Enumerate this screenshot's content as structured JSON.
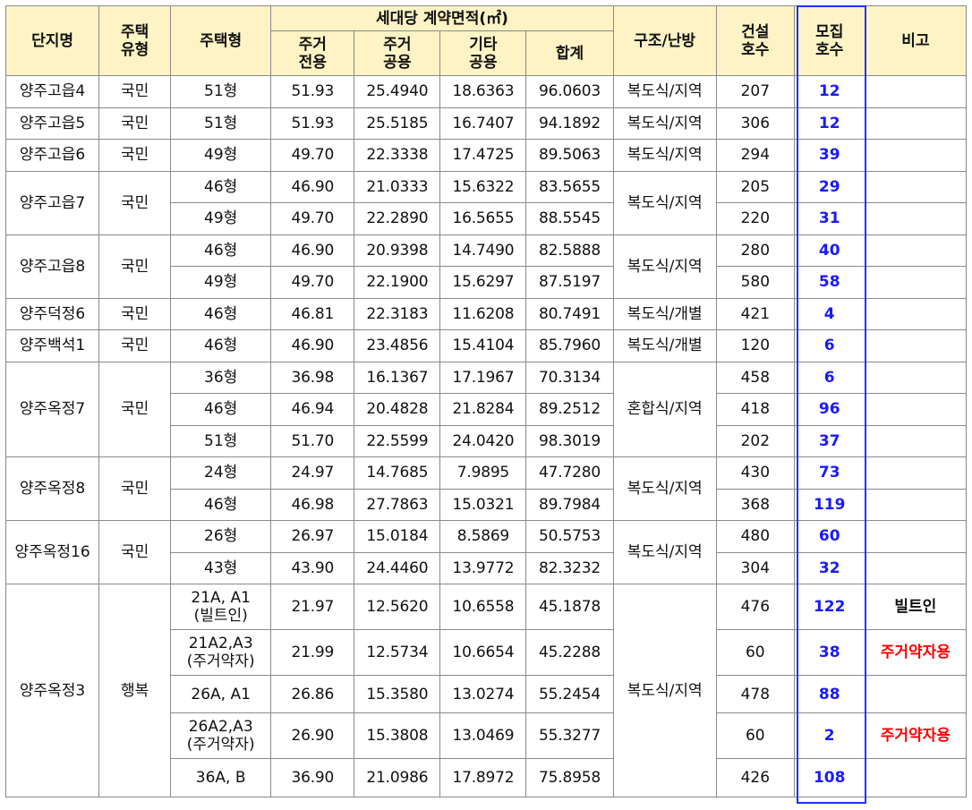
{
  "headers": {
    "complex": "단지명",
    "type1": "주택",
    "type2": "유형",
    "housing_type": "주택형",
    "area_group": "세대당 계약면적(㎡)",
    "res_excl_1": "주거",
    "res_excl_2": "전용",
    "res_common_1": "주거",
    "res_common_2": "공용",
    "other_common_1": "기타",
    "other_common_2": "공용",
    "total": "합계",
    "structure": "구조/난방",
    "built_1": "건설",
    "built_2": "호수",
    "recruit_1": "모집",
    "recruit_2": "호수",
    "note": "비고"
  },
  "rows": [
    {
      "complex": "양주고읍4",
      "kind": "국민",
      "type": "51형",
      "excl": "51.93",
      "common": "25.4940",
      "other": "18.6363",
      "total": "96.0603",
      "structure": "복도식/지역",
      "built": "207",
      "recruit": "12",
      "note": ""
    },
    {
      "complex": "양주고읍5",
      "kind": "국민",
      "type": "51형",
      "excl": "51.93",
      "common": "25.5185",
      "other": "16.7407",
      "total": "94.1892",
      "structure": "복도식/지역",
      "built": "306",
      "recruit": "12",
      "note": ""
    },
    {
      "complex": "양주고읍6",
      "kind": "국민",
      "type": "49형",
      "excl": "49.70",
      "common": "22.3338",
      "other": "17.4725",
      "total": "89.5063",
      "structure": "복도식/지역",
      "built": "294",
      "recruit": "39",
      "note": ""
    },
    {
      "complex": "양주고읍7",
      "kind": "국민",
      "type": "46형",
      "excl": "46.90",
      "common": "21.0333",
      "other": "15.6322",
      "total": "83.5655",
      "structure": "복도식/지역",
      "built": "205",
      "recruit": "29",
      "note": ""
    },
    {
      "type": "49형",
      "excl": "49.70",
      "common": "22.2890",
      "other": "16.5655",
      "total": "88.5545",
      "built": "220",
      "recruit": "31",
      "note": ""
    },
    {
      "complex": "양주고읍8",
      "kind": "국민",
      "type": "46형",
      "excl": "46.90",
      "common": "20.9398",
      "other": "14.7490",
      "total": "82.5888",
      "structure": "복도식/지역",
      "built": "280",
      "recruit": "40",
      "note": ""
    },
    {
      "type": "49형",
      "excl": "49.70",
      "common": "22.1900",
      "other": "15.6297",
      "total": "87.5197",
      "built": "580",
      "recruit": "58",
      "note": ""
    },
    {
      "complex": "양주덕정6",
      "kind": "국민",
      "type": "46형",
      "excl": "46.81",
      "common": "22.3183",
      "other": "11.6208",
      "total": "80.7491",
      "structure": "복도식/개별",
      "built": "421",
      "recruit": "4",
      "note": ""
    },
    {
      "complex": "양주백석1",
      "kind": "국민",
      "type": "46형",
      "excl": "46.90",
      "common": "23.4856",
      "other": "15.4104",
      "total": "85.7960",
      "structure": "복도식/개별",
      "built": "120",
      "recruit": "6",
      "note": ""
    },
    {
      "complex": "양주옥정7",
      "kind": "국민",
      "type": "36형",
      "excl": "36.98",
      "common": "16.1367",
      "other": "17.1967",
      "total": "70.3134",
      "structure": "혼합식/지역",
      "built": "458",
      "recruit": "6",
      "note": ""
    },
    {
      "type": "46형",
      "excl": "46.94",
      "common": "20.4828",
      "other": "21.8284",
      "total": "89.2512",
      "built": "418",
      "recruit": "96",
      "note": ""
    },
    {
      "type": "51형",
      "excl": "51.70",
      "common": "22.5599",
      "other": "24.0420",
      "total": "98.3019",
      "built": "202",
      "recruit": "37",
      "note": ""
    },
    {
      "complex": "양주옥정8",
      "kind": "국민",
      "type": "24형",
      "excl": "24.97",
      "common": "14.7685",
      "other": "7.9895",
      "total": "47.7280",
      "structure": "복도식/지역",
      "built": "430",
      "recruit": "73",
      "note": ""
    },
    {
      "type": "46형",
      "excl": "46.98",
      "common": "27.7863",
      "other": "15.0321",
      "total": "89.7984",
      "built": "368",
      "recruit": "119",
      "note": ""
    },
    {
      "complex": "양주옥정16",
      "kind": "국민",
      "type": "26형",
      "excl": "26.97",
      "common": "15.0184",
      "other": "8.5869",
      "total": "50.5753",
      "structure": "복도식/지역",
      "built": "480",
      "recruit": "60",
      "note": ""
    },
    {
      "type": "43형",
      "excl": "43.90",
      "common": "24.4460",
      "other": "13.9772",
      "total": "82.3232",
      "built": "304",
      "recruit": "32",
      "note": ""
    },
    {
      "complex": "양주옥정3",
      "kind": "행복",
      "type_1": "21A, A1",
      "type_2": "(빌트인)",
      "excl": "21.97",
      "common": "12.5620",
      "other": "10.6558",
      "total": "45.1878",
      "structure": "복도식/지역",
      "built": "476",
      "recruit": "122",
      "note": "빌트인"
    },
    {
      "type_1": "21A2,A3",
      "type_2": "(주거약자)",
      "excl": "21.99",
      "common": "12.5734",
      "other": "10.6654",
      "total": "45.2288",
      "built": "60",
      "recruit": "38",
      "note": "주거약자용"
    },
    {
      "type": "26A, A1",
      "excl": "26.86",
      "common": "15.3580",
      "other": "13.0274",
      "total": "55.2454",
      "built": "478",
      "recruit": "88",
      "note": ""
    },
    {
      "type_1": "26A2,A3",
      "type_2": "(주거약자)",
      "excl": "26.90",
      "common": "15.3808",
      "other": "13.0469",
      "total": "55.3277",
      "built": "60",
      "recruit": "2",
      "note": "주거약자용"
    },
    {
      "type": "36A, B",
      "excl": "36.90",
      "common": "21.0986",
      "other": "17.8972",
      "total": "75.8958",
      "built": "426",
      "recruit": "108",
      "note": ""
    }
  ],
  "colors": {
    "header_bg": "#fdf3c4",
    "recruit_text": "#1a1aff",
    "recruit_box": "#2330ff",
    "note_red": "#ff0000"
  }
}
